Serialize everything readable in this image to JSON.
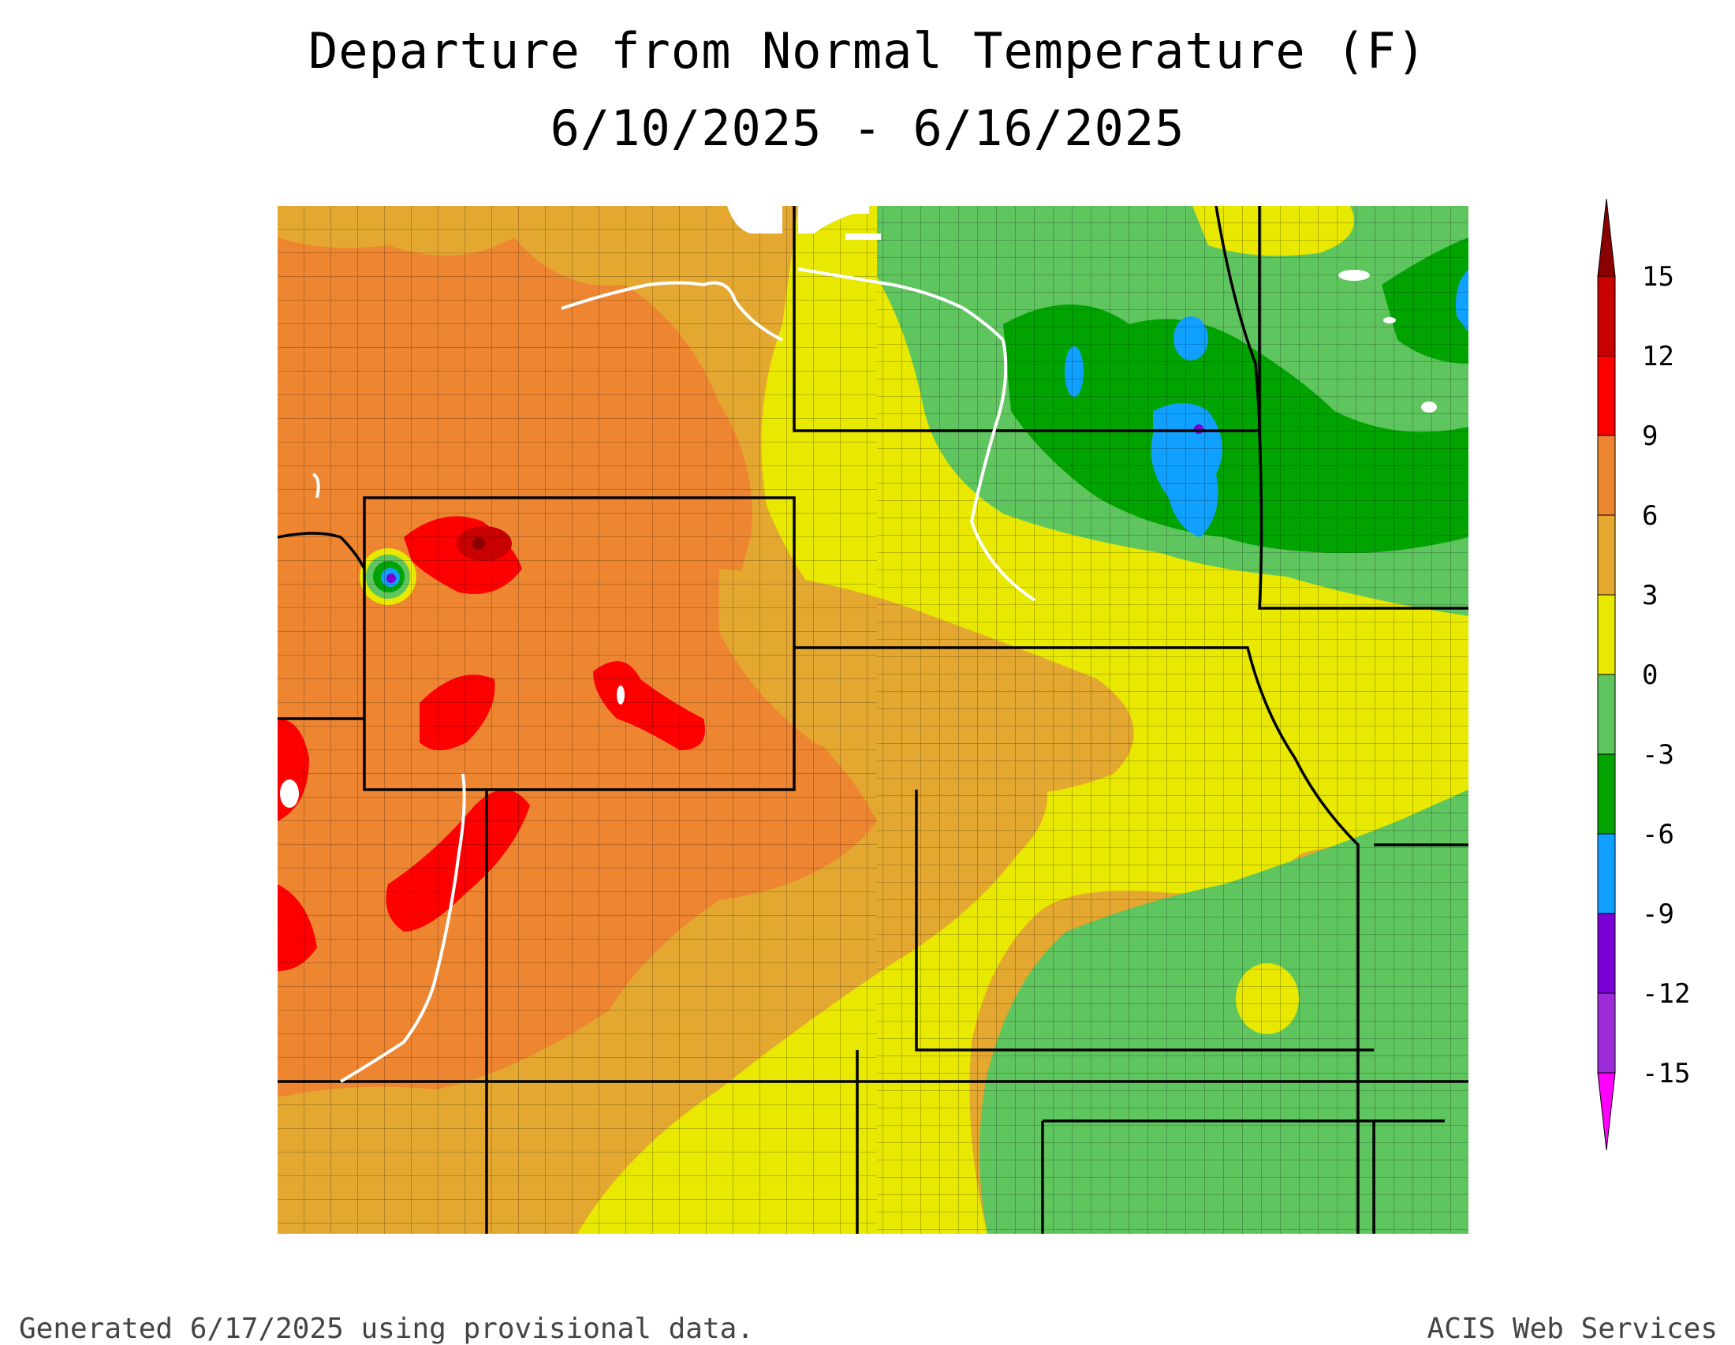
{
  "title": {
    "line1": "Departure from Normal Temperature (F)",
    "line2": "6/10/2025 - 6/16/2025"
  },
  "legend": {
    "ticks": [
      "15",
      "12",
      "9",
      "6",
      "3",
      "0",
      "-3",
      "-6",
      "-9",
      "-12",
      "-15"
    ],
    "colors": [
      "#ff00ff",
      "#9c2bd8",
      "#7a00d6",
      "#10a0ff",
      "#00a300",
      "#5fc55f",
      "#e8e800",
      "#e4a830",
      "#ee8530",
      "#ff0000",
      "#c80000",
      "#8a0000"
    ]
  },
  "palette": {
    "warm_dark": "#ee8530",
    "warm": "#e4a830",
    "neutral_warm": "#e8e800",
    "cool": "#5fc55f",
    "cool_dark": "#00a300",
    "cold": "#10a0ff",
    "hot": "#ff0000",
    "very_hot": "#8a0000"
  },
  "footer": {
    "left": "Generated 6/17/2025 using provisional data.",
    "right": "ACIS Web Services"
  }
}
